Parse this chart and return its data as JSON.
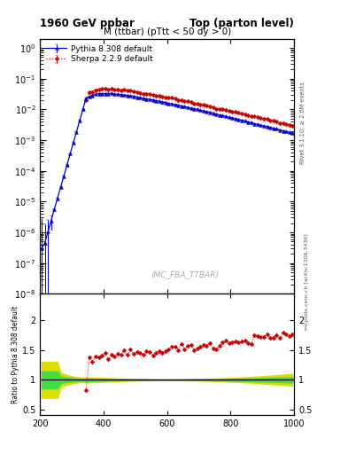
{
  "title_left": "1960 GeV ppbar",
  "title_right": "Top (parton level)",
  "main_title": "M (ttbar) (pTtt < 50 dy > 0)",
  "watermark": "(MC_FBA_TTBAR)",
  "right_label_top": "Rivet 3.1.10; ≥ 2.6M events",
  "right_label_bot": "mcplots.cern.ch [arXiv:1306.3436]",
  "ylabel_ratio": "Ratio to Pythia 8.308 default",
  "xlim": [
    200,
    1000
  ],
  "ylim_main_lo": 1e-08,
  "ylim_main_hi": 2.0,
  "ylim_ratio_lo": 0.4,
  "ylim_ratio_hi": 2.45,
  "ratio_yticks": [
    0.5,
    1.0,
    1.5,
    2.0
  ],
  "ratio_yticklabels": [
    "0.5",
    "1",
    "1.5",
    "2"
  ],
  "pythia_color": "#0000cc",
  "sherpa_color": "#cc0000",
  "band_green": "#44dd44",
  "band_yellow": "#dddd00",
  "bg_color": "#ffffff",
  "xticks": [
    200,
    400,
    600,
    800,
    1000
  ]
}
